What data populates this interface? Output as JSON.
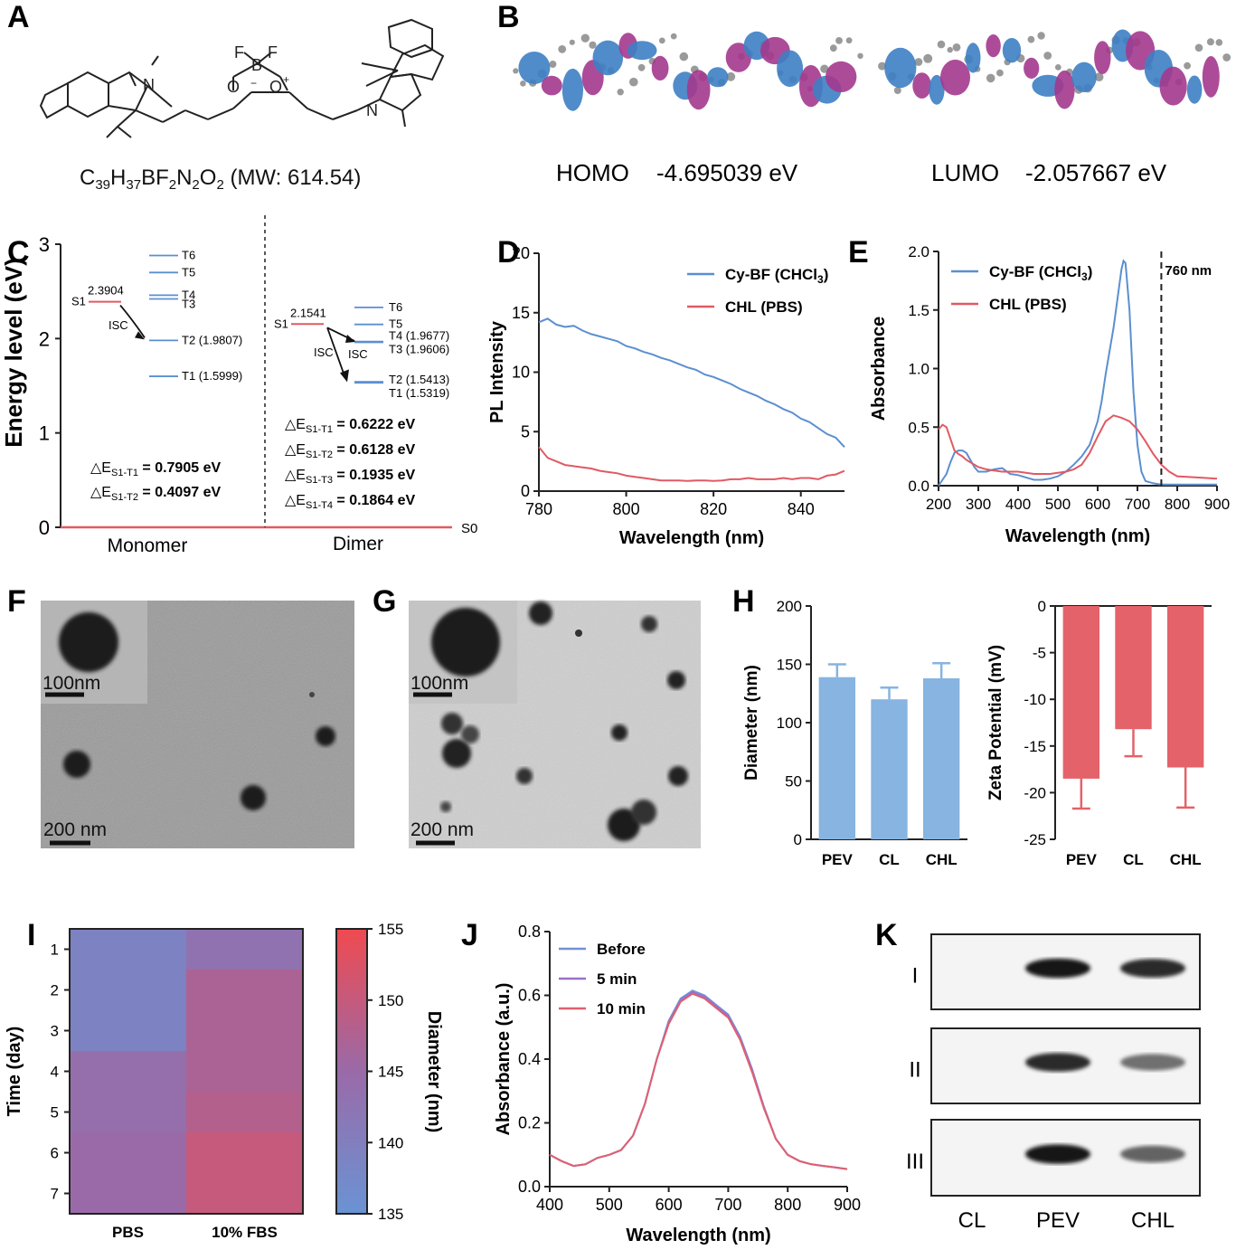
{
  "panels": {
    "A": {
      "label": "A",
      "formula": "C39H37BF2N2O2 (MW: 614.54)",
      "formula_parts": {
        "c": "C",
        "c_n": "39",
        "h": "H",
        "h_n": "37",
        "bf": "BF",
        "f_n": "2",
        "n": "N",
        "n_n": "2",
        "o": "O",
        "o_n": "2",
        "mw": " (MW: 614.54)"
      },
      "atoms": {
        "F1": "F",
        "F2": "F",
        "B": "B",
        "minus": "−",
        "O1": "O",
        "O2": "O",
        "plus": "+",
        "N1": "N",
        "N2": "N"
      }
    },
    "B": {
      "label": "B",
      "homo_label": "HOMO",
      "homo_value": "-4.695039 eV",
      "lumo_label": "LUMO",
      "lumo_value": "-2.057667 eV",
      "colors": {
        "positive": "#3d7fc4",
        "negative": "#a3388e",
        "atom": "#9a9a9a"
      }
    },
    "C": {
      "label": "C",
      "ylabel": "Energy level (eV)",
      "yticks": [
        "0",
        "1",
        "2",
        "3"
      ],
      "groups": [
        "Monomer",
        "Dimer"
      ],
      "s0_label": "S0",
      "monomer": {
        "s1": {
          "name": "S1",
          "value": "2.3904",
          "energy": 2.3904
        },
        "isc": "ISC",
        "levels": [
          {
            "name": "T6",
            "energy": 2.88,
            "text": "T6"
          },
          {
            "name": "T5",
            "energy": 2.7,
            "text": "T5"
          },
          {
            "name": "T4",
            "energy": 2.46,
            "text": "T4"
          },
          {
            "name": "T3",
            "energy": 2.42,
            "text": "T3"
          },
          {
            "name": "T2",
            "energy": 1.9807,
            "text": "T2 (1.9807)"
          },
          {
            "name": "T1",
            "energy": 1.5999,
            "text": "T1 (1.5999)"
          }
        ],
        "deltas": [
          {
            "pre": "△E",
            "sub": "S1-T1",
            "post": " = 0.7905 eV"
          },
          {
            "pre": "△E",
            "sub": "S1-T2",
            "post": " = 0.4097 eV"
          }
        ]
      },
      "dimer": {
        "s1": {
          "name": "S1",
          "value": "2.1541",
          "energy": 2.1541
        },
        "isc1": "ISC",
        "isc2": "ISC",
        "levels": [
          {
            "name": "T6",
            "energy": 2.33,
            "text": "T6"
          },
          {
            "name": "T5",
            "energy": 2.15,
            "text": "T5"
          },
          {
            "name": "T4",
            "energy": 1.9677,
            "text": "T4 (1.9677)"
          },
          {
            "name": "T3",
            "energy": 1.9606,
            "text": "T3 (1.9606)"
          },
          {
            "name": "T2",
            "energy": 1.5413,
            "text": "T2 (1.5413)"
          },
          {
            "name": "T1",
            "energy": 1.5319,
            "text": "T1 (1.5319)"
          }
        ],
        "deltas": [
          {
            "pre": "△E",
            "sub": "S1-T1",
            "post": " = 0.6222 eV"
          },
          {
            "pre": "△E",
            "sub": "S1-T2",
            "post": " = 0.6128 eV"
          },
          {
            "pre": "△E",
            "sub": "S1-T3",
            "post": " = 0.1935 eV"
          },
          {
            "pre": "△E",
            "sub": "S1-T4",
            "post": " = 0.1864 eV"
          }
        ]
      }
    },
    "D": {
      "label": "D"
    },
    "E": {
      "label": "E"
    },
    "F": {
      "label": "F",
      "scale_inset": "100nm",
      "scale_main": "200 nm"
    },
    "G": {
      "label": "G",
      "scale_inset": "100nm",
      "scale_main": "200 nm"
    },
    "H": {
      "label": "H"
    },
    "I": {
      "label": "I"
    },
    "J": {
      "label": "J"
    },
    "K": {
      "label": "K",
      "rows": [
        "I",
        "II",
        "III"
      ],
      "lanes": [
        "CL",
        "PEV",
        "CHL"
      ],
      "band_intensity": [
        [
          0,
          0.95,
          0.85
        ],
        [
          0,
          0.85,
          0.55
        ],
        [
          0,
          0.95,
          0.6
        ]
      ]
    }
  },
  "chart_data": [
    {
      "panel": "D",
      "type": "line",
      "xlabel": "Wavelength (nm)",
      "ylabel": "PL Intensity",
      "xlim": [
        780,
        850
      ],
      "ylim": [
        0,
        20
      ],
      "xticks": [
        780,
        800,
        820,
        840
      ],
      "yticks": [
        0,
        5,
        10,
        15,
        20
      ],
      "legend": "top-right",
      "series": [
        {
          "name": "Cy-BF (CHCl3)",
          "name_main": "Cy-BF (CHCl",
          "name_sub": "3",
          "name_end": ")",
          "color": "#5b8fd0",
          "x": [
            780,
            782,
            784,
            786,
            788,
            790,
            792,
            794,
            796,
            798,
            800,
            802,
            804,
            806,
            808,
            810,
            812,
            814,
            816,
            818,
            820,
            822,
            824,
            826,
            828,
            830,
            832,
            834,
            836,
            838,
            840,
            842,
            844,
            846,
            848,
            850
          ],
          "y": [
            14.2,
            14.5,
            14.0,
            13.8,
            13.9,
            13.5,
            13.2,
            13.0,
            12.8,
            12.6,
            12.2,
            12.0,
            11.7,
            11.5,
            11.2,
            11.0,
            10.7,
            10.4,
            10.2,
            9.8,
            9.6,
            9.3,
            9.0,
            8.6,
            8.3,
            8.0,
            7.6,
            7.3,
            6.9,
            6.6,
            6.1,
            5.8,
            5.3,
            4.8,
            4.5,
            3.7
          ]
        },
        {
          "name": "CHL (PBS)",
          "color": "#e05a63",
          "x": [
            780,
            782,
            784,
            786,
            788,
            790,
            792,
            794,
            796,
            798,
            800,
            802,
            804,
            806,
            808,
            810,
            812,
            814,
            816,
            818,
            820,
            822,
            824,
            826,
            828,
            830,
            832,
            834,
            836,
            838,
            840,
            842,
            844,
            846,
            848,
            850
          ],
          "y": [
            3.7,
            2.8,
            2.5,
            2.2,
            2.1,
            2.0,
            1.9,
            1.7,
            1.6,
            1.5,
            1.3,
            1.2,
            1.1,
            1.0,
            0.9,
            0.9,
            0.9,
            0.85,
            0.9,
            0.9,
            0.85,
            0.9,
            1.0,
            1.0,
            1.1,
            1.0,
            1.0,
            1.0,
            1.1,
            1.0,
            1.1,
            1.1,
            1.0,
            1.3,
            1.4,
            1.7
          ]
        }
      ]
    },
    {
      "panel": "E",
      "type": "line",
      "xlabel": "Wavelength (nm)",
      "ylabel": "Absorbance",
      "xlim": [
        200,
        900
      ],
      "ylim": [
        0,
        2.0
      ],
      "xticks": [
        200,
        300,
        400,
        500,
        600,
        700,
        800,
        900
      ],
      "yticks": [
        "0.0",
        "0.5",
        "1.0",
        "1.5",
        "2.0"
      ],
      "annotation": {
        "x": 760,
        "text": "760 nm"
      },
      "legend": "top-left",
      "series": [
        {
          "name": "Cy-BF (CHCl3)",
          "name_main": "Cy-BF (CHCl",
          "name_sub": "3",
          "name_end": ")",
          "color": "#5b8fd0",
          "x": [
            200,
            210,
            220,
            230,
            240,
            250,
            260,
            270,
            280,
            290,
            300,
            320,
            340,
            360,
            380,
            400,
            420,
            440,
            460,
            480,
            500,
            520,
            540,
            560,
            580,
            600,
            610,
            620,
            630,
            640,
            650,
            660,
            665,
            670,
            680,
            690,
            700,
            710,
            720,
            740,
            760,
            800,
            850,
            900
          ],
          "y": [
            0.0,
            0.05,
            0.1,
            0.2,
            0.28,
            0.3,
            0.3,
            0.28,
            0.22,
            0.16,
            0.12,
            0.12,
            0.14,
            0.15,
            0.1,
            0.09,
            0.07,
            0.05,
            0.05,
            0.06,
            0.08,
            0.12,
            0.18,
            0.25,
            0.35,
            0.55,
            0.72,
            0.95,
            1.15,
            1.35,
            1.6,
            1.85,
            1.92,
            1.9,
            1.5,
            0.8,
            0.35,
            0.12,
            0.04,
            0.02,
            0.01,
            0.01,
            0.01,
            0.01
          ]
        },
        {
          "name": "CHL (PBS)",
          "color": "#e05a63",
          "x": [
            200,
            210,
            220,
            230,
            240,
            250,
            260,
            270,
            280,
            300,
            320,
            340,
            360,
            380,
            400,
            420,
            440,
            460,
            480,
            500,
            520,
            540,
            560,
            580,
            600,
            620,
            640,
            660,
            680,
            700,
            720,
            740,
            760,
            780,
            800,
            850,
            900
          ],
          "y": [
            0.48,
            0.52,
            0.5,
            0.4,
            0.3,
            0.27,
            0.25,
            0.22,
            0.2,
            0.16,
            0.14,
            0.13,
            0.12,
            0.12,
            0.12,
            0.11,
            0.1,
            0.1,
            0.1,
            0.11,
            0.12,
            0.14,
            0.18,
            0.28,
            0.42,
            0.55,
            0.6,
            0.58,
            0.55,
            0.48,
            0.38,
            0.27,
            0.18,
            0.12,
            0.08,
            0.07,
            0.06
          ]
        }
      ]
    },
    {
      "panel": "H-left",
      "type": "bar",
      "ylabel": "Diameter (nm)",
      "categories": [
        "PEV",
        "CL",
        "CHL"
      ],
      "values": [
        139,
        120,
        138
      ],
      "errors": [
        11,
        10,
        13
      ],
      "ylim": [
        0,
        200
      ],
      "yticks": [
        0,
        50,
        100,
        150,
        200
      ],
      "color": "#87b4e0"
    },
    {
      "panel": "H-right",
      "type": "bar",
      "ylabel": "Zeta Potential (mV)",
      "categories": [
        "PEV",
        "CL",
        "CHL"
      ],
      "values": [
        -18.5,
        -13.2,
        -17.3
      ],
      "errors": [
        3.2,
        2.9,
        4.3
      ],
      "ylim": [
        -25,
        0
      ],
      "yticks": [
        0,
        -5,
        -10,
        -15,
        -20,
        -25
      ],
      "color": "#e46269"
    },
    {
      "panel": "I",
      "type": "heatmap",
      "ylabel": "Time (day)",
      "columns": [
        "PBS",
        "10% FBS"
      ],
      "rows": [
        "1",
        "2",
        "3",
        "4",
        "5",
        "6",
        "7"
      ],
      "values": [
        [
          139,
          143
        ],
        [
          139,
          147
        ],
        [
          139,
          147
        ],
        [
          144,
          147
        ],
        [
          144,
          148
        ],
        [
          145,
          150
        ],
        [
          145,
          150
        ]
      ],
      "colorbar": {
        "label": "Diameter (nm)",
        "min": 135,
        "max": 155,
        "ticks": [
          135,
          140,
          145,
          150,
          155
        ]
      }
    },
    {
      "panel": "J",
      "type": "line",
      "xlabel": "Wavelength (nm)",
      "ylabel": "Absorbance (a.u.)",
      "xlim": [
        400,
        900
      ],
      "ylim": [
        0,
        0.8
      ],
      "xticks": [
        400,
        500,
        600,
        700,
        800,
        900
      ],
      "yticks": [
        "0.0",
        "0.2",
        "0.4",
        "0.6",
        "0.8"
      ],
      "legend": "top-left",
      "series": [
        {
          "name": "Before",
          "color": "#6f92d6",
          "x": [
            400,
            420,
            440,
            460,
            480,
            500,
            520,
            540,
            560,
            580,
            600,
            620,
            640,
            660,
            680,
            700,
            720,
            740,
            760,
            780,
            800,
            820,
            840,
            860,
            880,
            900
          ],
          "y": [
            0.1,
            0.08,
            0.065,
            0.07,
            0.09,
            0.1,
            0.115,
            0.16,
            0.26,
            0.4,
            0.52,
            0.59,
            0.615,
            0.6,
            0.57,
            0.54,
            0.47,
            0.37,
            0.25,
            0.15,
            0.1,
            0.08,
            0.07,
            0.065,
            0.06,
            0.055
          ]
        },
        {
          "name": "5 min",
          "color": "#9b70c8",
          "x": [
            400,
            420,
            440,
            460,
            480,
            500,
            520,
            540,
            560,
            580,
            600,
            620,
            640,
            660,
            680,
            700,
            720,
            740,
            760,
            780,
            800,
            820,
            840,
            860,
            880,
            900
          ],
          "y": [
            0.1,
            0.08,
            0.065,
            0.07,
            0.09,
            0.1,
            0.115,
            0.16,
            0.26,
            0.4,
            0.515,
            0.585,
            0.61,
            0.595,
            0.565,
            0.535,
            0.465,
            0.365,
            0.25,
            0.15,
            0.1,
            0.08,
            0.07,
            0.065,
            0.06,
            0.055
          ]
        },
        {
          "name": "10 min",
          "color": "#e06070",
          "x": [
            400,
            420,
            440,
            460,
            480,
            500,
            520,
            540,
            560,
            580,
            600,
            620,
            640,
            660,
            680,
            700,
            720,
            740,
            760,
            780,
            800,
            820,
            840,
            860,
            880,
            900
          ],
          "y": [
            0.1,
            0.08,
            0.065,
            0.07,
            0.09,
            0.1,
            0.115,
            0.16,
            0.26,
            0.4,
            0.51,
            0.58,
            0.605,
            0.59,
            0.56,
            0.53,
            0.46,
            0.36,
            0.245,
            0.15,
            0.1,
            0.08,
            0.07,
            0.065,
            0.06,
            0.055
          ]
        }
      ]
    }
  ]
}
